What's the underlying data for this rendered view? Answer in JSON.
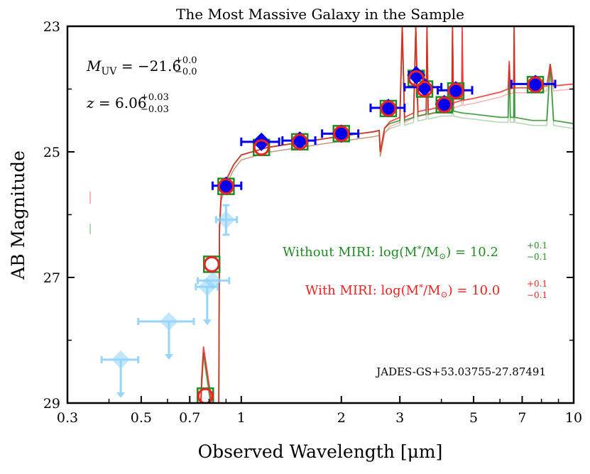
{
  "chart_data": {
    "type": "scatter",
    "title": "The Most Massive Galaxy in the Sample",
    "xlabel": "Observed Wavelength [μm]",
    "ylabel": "AB Magnitude",
    "xscale": "log",
    "xlim": [
      0.3,
      10
    ],
    "ylim": [
      29,
      23
    ],
    "y_inverted": true,
    "xticks": [
      "0.3",
      "0.5",
      "0.7",
      "1",
      "2",
      "3",
      "5",
      "7",
      "10"
    ],
    "yticks": [
      "23",
      "25",
      "27",
      "29"
    ],
    "annotations": {
      "muv": "M_UV = −21.6 (+0.0 / −0.0)",
      "muv_main": "−21.6",
      "muv_up": "+0.0",
      "muv_lo": "−0.0",
      "z_main": "6.06",
      "z_up": "+0.03",
      "z_lo": "−0.03",
      "without_miri_label": "Without MIRI: log(M",
      "without_miri_value": "10.2",
      "without_miri_up": "+0.1",
      "without_miri_lo": "−0.1",
      "with_miri_label": "With MIRI: log(M",
      "with_miri_value": "10.0",
      "with_miri_up": "+0.1",
      "with_miri_lo": "−0.1",
      "object_id": "JADES-GS+53.03755-27.87491"
    },
    "colors": {
      "detections": "#0000ee",
      "nondetections": "#87cefa",
      "with_miri": "#ee2222",
      "without_miri": "#228b22"
    },
    "detections": [
      {
        "x": 0.9,
        "y": 25.54,
        "xerr": [
          0.82,
          1.0
        ]
      },
      {
        "x": 1.15,
        "y": 24.84,
        "xerr": [
          1.0,
          1.3
        ]
      },
      {
        "x": 1.5,
        "y": 24.82,
        "xerr": [
          1.33,
          1.67
        ]
      },
      {
        "x": 2.0,
        "y": 24.71,
        "xerr": [
          1.75,
          2.25
        ]
      },
      {
        "x": 2.77,
        "y": 24.3,
        "xerr": [
          2.45,
          3.1
        ]
      },
      {
        "x": 3.36,
        "y": 23.78,
        "xerr": [
          3.2,
          3.5
        ]
      },
      {
        "x": 3.56,
        "y": 23.97,
        "xerr": [
          3.1,
          4.0
        ]
      },
      {
        "x": 4.08,
        "y": 24.24,
        "xerr": [
          3.9,
          4.25
        ]
      },
      {
        "x": 4.42,
        "y": 24.02,
        "xerr": [
          3.9,
          4.95
        ]
      },
      {
        "x": 7.67,
        "y": 23.92,
        "xerr": [
          6.5,
          8.8
        ]
      }
    ],
    "nondetections": [
      {
        "x": 0.9,
        "y": 26.08,
        "xerr": [
          0.84,
          0.97
        ],
        "yerr": [
          25.85,
          26.32
        ],
        "upper_limit": false
      },
      {
        "x": 0.82,
        "y": 27.05,
        "xerr": [
          0.74,
          0.92
        ],
        "upper_limit": false
      },
      {
        "x": 0.79,
        "y": 27.15,
        "xerr": [
          0.73,
          0.85
        ],
        "upper_limit": true
      },
      {
        "x": 0.606,
        "y": 27.7,
        "xerr": [
          0.49,
          0.72
        ],
        "upper_limit": true
      },
      {
        "x": 0.434,
        "y": 28.31,
        "xerr": [
          0.38,
          0.49
        ],
        "upper_limit": true
      }
    ],
    "model_photometry": [
      {
        "x": 0.78,
        "y": 28.89
      },
      {
        "x": 0.815,
        "y": 26.79
      },
      {
        "x": 0.9,
        "y": 25.55
      },
      {
        "x": 1.15,
        "y": 24.93
      },
      {
        "x": 1.5,
        "y": 24.84
      },
      {
        "x": 2.0,
        "y": 24.71
      },
      {
        "x": 2.77,
        "y": 24.31
      },
      {
        "x": 3.36,
        "y": 23.83
      },
      {
        "x": 3.56,
        "y": 24.0
      },
      {
        "x": 4.08,
        "y": 24.25
      },
      {
        "x": 4.42,
        "y": 24.03
      },
      {
        "x": 7.67,
        "y": 23.93
      }
    ],
    "series": [
      {
        "name": "With MIRI",
        "color": "#ee2222",
        "x": [
          0.3,
          0.75,
          0.76,
          0.77,
          0.79,
          0.81,
          0.82,
          0.855,
          0.86,
          0.87,
          0.9,
          0.95,
          1.0,
          1.2,
          1.5,
          2.0,
          2.5,
          2.6,
          2.62,
          2.7,
          2.8,
          3.0,
          3.05,
          3.1,
          3.3,
          3.35,
          3.4,
          3.6,
          3.62,
          3.65,
          4.0,
          4.3,
          4.32,
          4.35,
          4.6,
          4.62,
          4.65,
          5.0,
          6.0,
          6.35,
          6.4,
          6.45,
          6.6,
          6.62,
          6.65,
          7.5,
          8.3,
          8.5,
          8.7,
          10
        ],
        "y": [
          29.5,
          29.5,
          28.6,
          28.1,
          28.5,
          28.9,
          29.5,
          29.5,
          26.2,
          25.7,
          25.45,
          25.2,
          25.05,
          24.93,
          24.85,
          24.75,
          24.68,
          24.66,
          25.0,
          24.62,
          24.52,
          24.45,
          23.0,
          24.45,
          24.38,
          23.0,
          24.36,
          24.33,
          23.0,
          24.33,
          24.28,
          24.22,
          23.0,
          24.22,
          24.18,
          23.0,
          24.18,
          24.15,
          24.05,
          24.0,
          23.55,
          24.0,
          23.98,
          23.0,
          23.98,
          23.98,
          23.95,
          23.6,
          23.95,
          23.92
        ]
      },
      {
        "name": "Without MIRI",
        "color": "#228b22",
        "x": [
          0.3,
          0.75,
          0.76,
          0.77,
          0.79,
          0.81,
          0.82,
          0.855,
          0.86,
          0.87,
          0.9,
          0.95,
          1.0,
          1.2,
          1.5,
          2.0,
          2.5,
          2.6,
          2.62,
          2.7,
          2.8,
          3.0,
          3.05,
          3.1,
          3.3,
          3.35,
          3.4,
          3.6,
          3.62,
          3.65,
          4.0,
          4.3,
          4.32,
          4.35,
          4.6,
          5.0,
          6.0,
          6.35,
          6.4,
          6.45,
          6.6,
          6.62,
          6.65,
          7.5,
          8.3,
          8.5,
          8.7,
          10
        ],
        "y": [
          29.5,
          29.5,
          28.7,
          28.2,
          28.6,
          29.0,
          29.5,
          29.5,
          26.2,
          25.7,
          25.45,
          25.2,
          25.05,
          24.93,
          24.85,
          24.75,
          24.68,
          24.66,
          25.0,
          24.62,
          24.55,
          24.5,
          23.0,
          24.5,
          24.45,
          23.0,
          24.43,
          24.4,
          23.0,
          24.4,
          24.35,
          24.35,
          23.0,
          24.35,
          24.38,
          24.4,
          24.45,
          24.45,
          23.6,
          24.45,
          24.45,
          23.0,
          24.45,
          24.5,
          24.5,
          23.6,
          24.5,
          24.55
        ]
      }
    ]
  }
}
